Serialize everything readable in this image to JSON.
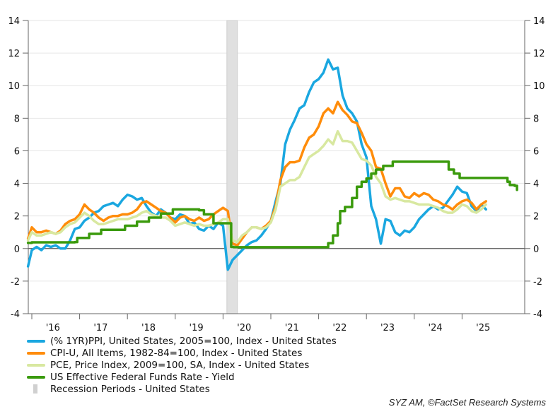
{
  "chart_data": {
    "type": "line",
    "title": "",
    "xlabel": "",
    "ylabel": "",
    "ylim": [
      -4,
      14
    ],
    "xlim": [
      2015.92,
      2025.9
    ],
    "y_ticks": [
      -4,
      -2,
      0,
      2,
      4,
      6,
      8,
      10,
      12,
      14
    ],
    "y_tick_labels": [
      "-4",
      "-2",
      "0",
      "2",
      "4",
      "6",
      "8",
      "10",
      "12",
      "14"
    ],
    "x_ticks": [
      2016,
      2017,
      2018,
      2019,
      2020,
      2021,
      2022,
      2023,
      2024,
      2025
    ],
    "x_tick_labels": [
      "'16",
      "'17",
      "'18",
      "'19",
      "'20",
      "'21",
      "'22",
      "'23",
      "'24",
      "'25"
    ],
    "grid": true,
    "dual_y_axis": true,
    "legend_position": "bottom-left",
    "recession": {
      "name": "Recession Periods - United States",
      "start": 2020.08,
      "end": 2020.3,
      "color": "#d9d9d9"
    },
    "series": [
      {
        "name": "(% 1YR)PPI, United States, 2005=100, Index - United States",
        "color": "#1aa7e0",
        "x": [
          2015.92,
          2016.0,
          2016.1,
          2016.2,
          2016.3,
          2016.4,
          2016.5,
          2016.6,
          2016.7,
          2016.8,
          2016.9,
          2017.0,
          2017.1,
          2017.2,
          2017.3,
          2017.4,
          2017.5,
          2017.6,
          2017.7,
          2017.8,
          2017.9,
          2018.0,
          2018.1,
          2018.2,
          2018.3,
          2018.4,
          2018.5,
          2018.6,
          2018.7,
          2018.8,
          2018.9,
          2019.0,
          2019.1,
          2019.2,
          2019.3,
          2019.4,
          2019.5,
          2019.6,
          2019.7,
          2019.8,
          2019.9,
          2020.0,
          2020.1,
          2020.2,
          2020.3,
          2020.4,
          2020.5,
          2020.6,
          2020.7,
          2020.8,
          2020.9,
          2021.0,
          2021.1,
          2021.2,
          2021.3,
          2021.4,
          2021.5,
          2021.6,
          2021.7,
          2021.8,
          2021.9,
          2022.0,
          2022.1,
          2022.2,
          2022.3,
          2022.4,
          2022.5,
          2022.6,
          2022.7,
          2022.8,
          2022.9,
          2023.0,
          2023.1,
          2023.2,
          2023.3,
          2023.4,
          2023.5,
          2023.6,
          2023.7,
          2023.8,
          2023.9,
          2024.0,
          2024.1,
          2024.2,
          2024.3,
          2024.4,
          2024.5,
          2024.6,
          2024.7,
          2024.8,
          2024.9,
          2025.0,
          2025.1,
          2025.2,
          2025.3,
          2025.4,
          2025.5
        ],
        "values": [
          -1.1,
          -0.1,
          0.1,
          -0.1,
          0.2,
          0.1,
          0.2,
          0.0,
          0.0,
          0.5,
          1.2,
          1.3,
          1.7,
          1.9,
          2.2,
          2.3,
          2.6,
          2.7,
          2.8,
          2.6,
          3.0,
          3.3,
          3.2,
          3.0,
          3.1,
          2.6,
          2.2,
          2.0,
          2.4,
          2.2,
          1.9,
          1.8,
          2.1,
          2.0,
          1.5,
          1.6,
          1.2,
          1.1,
          1.4,
          1.2,
          1.6,
          1.4,
          -1.3,
          -0.7,
          -0.4,
          -0.1,
          0.2,
          0.4,
          0.5,
          0.8,
          1.2,
          1.7,
          2.9,
          4.0,
          6.4,
          7.3,
          7.9,
          8.6,
          8.8,
          9.6,
          10.2,
          10.4,
          10.8,
          11.6,
          11.0,
          11.1,
          9.4,
          8.6,
          8.3,
          7.8,
          6.4,
          5.6,
          2.6,
          1.8,
          0.3,
          1.8,
          1.7,
          1.0,
          0.8,
          1.1,
          1.0,
          1.3,
          1.8,
          2.1,
          2.4,
          2.6,
          2.4,
          2.5,
          2.9,
          3.3,
          3.8,
          3.5,
          3.4,
          2.6,
          2.3,
          2.7,
          2.4
        ]
      },
      {
        "name": "CPI-U, All Items, 1982-84=100, Index - United States",
        "color": "#ff8c0a",
        "x": [
          2015.92,
          2016.0,
          2016.1,
          2016.2,
          2016.3,
          2016.4,
          2016.5,
          2016.6,
          2016.7,
          2016.8,
          2016.9,
          2017.0,
          2017.1,
          2017.2,
          2017.3,
          2017.4,
          2017.5,
          2017.6,
          2017.7,
          2017.8,
          2017.9,
          2018.0,
          2018.1,
          2018.2,
          2018.3,
          2018.4,
          2018.5,
          2018.6,
          2018.7,
          2018.8,
          2018.9,
          2019.0,
          2019.1,
          2019.2,
          2019.3,
          2019.4,
          2019.5,
          2019.6,
          2019.7,
          2019.8,
          2019.9,
          2020.0,
          2020.1,
          2020.2,
          2020.3,
          2020.4,
          2020.5,
          2020.6,
          2020.7,
          2020.8,
          2020.9,
          2021.0,
          2021.1,
          2021.2,
          2021.3,
          2021.4,
          2021.5,
          2021.6,
          2021.7,
          2021.8,
          2021.9,
          2022.0,
          2022.1,
          2022.2,
          2022.3,
          2022.4,
          2022.5,
          2022.6,
          2022.7,
          2022.8,
          2022.9,
          2023.0,
          2023.1,
          2023.2,
          2023.3,
          2023.4,
          2023.5,
          2023.6,
          2023.7,
          2023.8,
          2023.9,
          2024.0,
          2024.1,
          2024.2,
          2024.3,
          2024.4,
          2024.5,
          2024.6,
          2024.7,
          2024.8,
          2024.9,
          2025.0,
          2025.1,
          2025.2,
          2025.3,
          2025.4,
          2025.5
        ],
        "values": [
          0.6,
          1.3,
          1.0,
          1.0,
          1.1,
          1.0,
          0.9,
          1.1,
          1.5,
          1.7,
          1.8,
          2.1,
          2.7,
          2.4,
          2.2,
          1.9,
          1.7,
          1.9,
          2.0,
          2.0,
          2.1,
          2.1,
          2.2,
          2.4,
          2.8,
          2.9,
          2.7,
          2.5,
          2.3,
          2.2,
          1.9,
          1.6,
          1.9,
          2.0,
          1.8,
          1.7,
          1.9,
          1.7,
          1.8,
          2.1,
          2.3,
          2.5,
          2.3,
          0.3,
          0.2,
          0.6,
          1.0,
          1.3,
          1.3,
          1.2,
          1.4,
          1.7,
          2.6,
          4.2,
          5.0,
          5.3,
          5.3,
          5.4,
          6.2,
          6.8,
          7.0,
          7.5,
          8.3,
          8.6,
          8.3,
          9.0,
          8.5,
          8.2,
          7.8,
          7.7,
          7.1,
          6.4,
          6.0,
          5.0,
          4.9,
          4.0,
          3.2,
          3.7,
          3.7,
          3.2,
          3.1,
          3.4,
          3.2,
          3.4,
          3.3,
          3.0,
          2.9,
          2.7,
          2.6,
          2.4,
          2.7,
          2.9,
          3.0,
          2.8,
          2.4,
          2.7,
          2.9
        ]
      },
      {
        "name": "PCE, Price Index, 2009=100, SA, Index - United States",
        "color": "#d8e8a0",
        "x": [
          2015.92,
          2016.0,
          2016.1,
          2016.2,
          2016.3,
          2016.4,
          2016.5,
          2016.6,
          2016.7,
          2016.8,
          2016.9,
          2017.0,
          2017.1,
          2017.2,
          2017.3,
          2017.4,
          2017.5,
          2017.6,
          2017.7,
          2017.8,
          2017.9,
          2018.0,
          2018.1,
          2018.2,
          2018.3,
          2018.4,
          2018.5,
          2018.6,
          2018.7,
          2018.8,
          2018.9,
          2019.0,
          2019.1,
          2019.2,
          2019.3,
          2019.4,
          2019.5,
          2019.6,
          2019.7,
          2019.8,
          2019.9,
          2020.0,
          2020.1,
          2020.2,
          2020.3,
          2020.4,
          2020.5,
          2020.6,
          2020.7,
          2020.8,
          2020.9,
          2021.0,
          2021.1,
          2021.2,
          2021.3,
          2021.4,
          2021.5,
          2021.6,
          2021.7,
          2021.8,
          2021.9,
          2022.0,
          2022.1,
          2022.2,
          2022.3,
          2022.4,
          2022.5,
          2022.6,
          2022.7,
          2022.8,
          2022.9,
          2023.0,
          2023.1,
          2023.2,
          2023.3,
          2023.4,
          2023.5,
          2023.6,
          2023.7,
          2023.8,
          2023.9,
          2024.0,
          2024.1,
          2024.2,
          2024.3,
          2024.4,
          2024.5,
          2024.6,
          2024.7,
          2024.8,
          2024.9,
          2025.0,
          2025.1,
          2025.2,
          2025.3,
          2025.4,
          2025.5
        ],
        "values": [
          0.5,
          1.0,
          0.8,
          0.8,
          0.9,
          1.0,
          0.9,
          1.0,
          1.3,
          1.5,
          1.6,
          1.9,
          2.2,
          2.0,
          1.7,
          1.5,
          1.5,
          1.6,
          1.7,
          1.8,
          1.8,
          1.8,
          1.9,
          2.0,
          2.2,
          2.3,
          2.1,
          2.0,
          1.9,
          1.9,
          1.7,
          1.4,
          1.5,
          1.6,
          1.5,
          1.4,
          1.5,
          1.4,
          1.4,
          1.5,
          1.6,
          1.8,
          1.8,
          0.5,
          0.4,
          0.8,
          1.0,
          1.3,
          1.3,
          1.2,
          1.3,
          1.6,
          2.4,
          3.8,
          4.0,
          4.2,
          4.2,
          4.4,
          5.0,
          5.6,
          5.8,
          6.0,
          6.3,
          6.7,
          6.4,
          7.2,
          6.6,
          6.6,
          6.5,
          6.0,
          5.5,
          5.4,
          5.1,
          4.4,
          4.0,
          3.2,
          3.0,
          3.1,
          3.0,
          2.9,
          2.9,
          2.8,
          2.7,
          2.7,
          2.7,
          2.6,
          2.5,
          2.3,
          2.2,
          2.2,
          2.4,
          2.7,
          2.6,
          2.3,
          2.2,
          2.4,
          2.7
        ]
      },
      {
        "name": "US Effective Federal Funds Rate - Yield",
        "color": "#3a9a0c",
        "step": true,
        "x": [
          2015.92,
          2016.0,
          2016.9,
          2016.95,
          2017.2,
          2017.45,
          2017.95,
          2018.2,
          2018.45,
          2018.7,
          2018.95,
          2019.5,
          2019.6,
          2019.8,
          2020.17,
          2020.22,
          2022.2,
          2022.3,
          2022.4,
          2022.45,
          2022.55,
          2022.7,
          2022.8,
          2022.9,
          2023.0,
          2023.1,
          2023.2,
          2023.35,
          2023.55,
          2024.7,
          2024.72,
          2024.83,
          2024.95,
          2025.9,
          2025.95,
          2026.0,
          2026.1,
          2026.15
        ],
        "values": [
          0.35,
          0.38,
          0.4,
          0.65,
          0.9,
          1.15,
          1.4,
          1.65,
          1.9,
          2.15,
          2.4,
          2.35,
          2.1,
          1.55,
          0.1,
          0.08,
          0.33,
          0.8,
          1.55,
          2.3,
          2.55,
          3.1,
          3.8,
          4.1,
          4.3,
          4.6,
          4.85,
          5.08,
          5.33,
          5.33,
          4.85,
          4.6,
          4.33,
          4.33,
          4.1,
          3.9,
          3.85,
          3.6
        ]
      }
    ]
  },
  "legend": {
    "items": [
      {
        "label": "(% 1YR)PPI, United States, 2005=100, Index - United States",
        "color": "#1aa7e0",
        "kind": "line"
      },
      {
        "label": "CPI-U, All Items, 1982-84=100, Index - United States",
        "color": "#ff8c0a",
        "kind": "line"
      },
      {
        "label": "PCE, Price Index, 2009=100, SA, Index - United States",
        "color": "#d8e8a0",
        "kind": "line"
      },
      {
        "label": "US Effective Federal Funds Rate - Yield",
        "color": "#3a9a0c",
        "kind": "line"
      },
      {
        "label": "Recession Periods - United States",
        "color": "#d0d0d0",
        "kind": "bar"
      }
    ]
  },
  "source": "SYZ AM, ©FactSet Research Systems"
}
